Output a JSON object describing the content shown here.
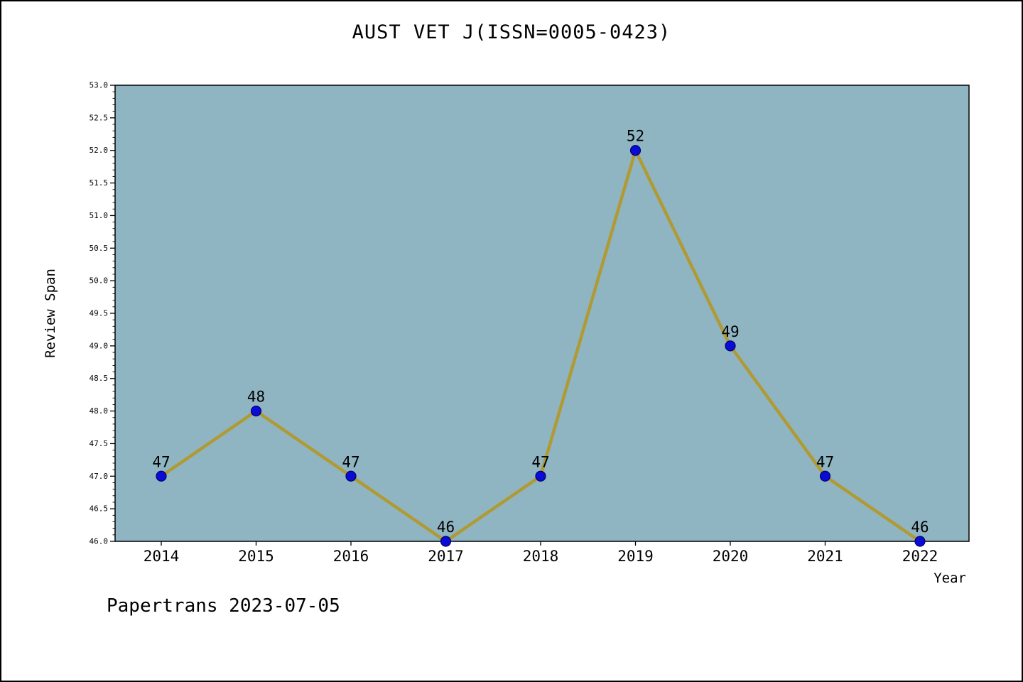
{
  "title": "AUST VET J(ISSN=0005-0423)",
  "footer": "Papertrans 2023-07-05",
  "chart_data": {
    "type": "line",
    "title": "AUST VET J(ISSN=0005-0423)",
    "xlabel": "Year",
    "ylabel": "Review Span",
    "x": [
      2014,
      2015,
      2016,
      2017,
      2018,
      2019,
      2020,
      2021,
      2022
    ],
    "values": [
      47,
      48,
      47,
      46,
      47,
      52,
      49,
      47,
      46
    ],
    "ylim": [
      46.0,
      53.0
    ],
    "ytick_major_step": 0.5,
    "ytick_minor_step": 0.1,
    "grid": false,
    "legend": "none",
    "colors": {
      "plot_bg": "#8fb5c3",
      "line": "#b09a33",
      "marker": "#0b0bd6",
      "marker_edge": "#00006e",
      "text": "#000000"
    }
  }
}
